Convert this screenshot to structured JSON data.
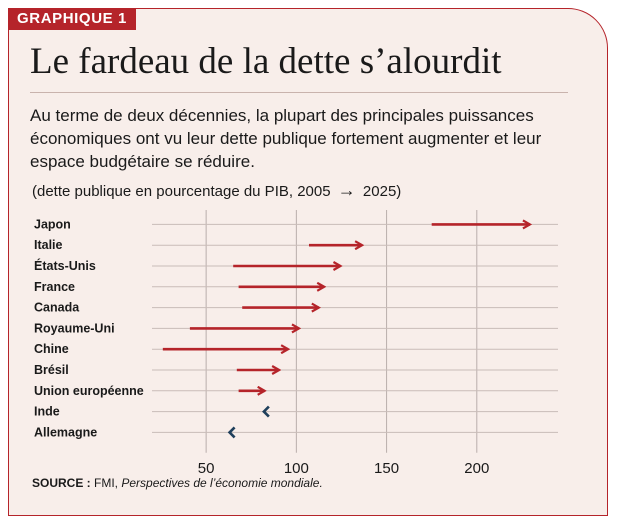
{
  "header": {
    "tag": "GRAPHIQUE 1",
    "title": "Le fardeau de la dette s’alourdit",
    "subtitle": "Au terme de deux décennies, la plupart des principales puissances économiques ont vu leur dette publique fortement augmenter et leur espace budgétaire se réduire.",
    "note_prefix": "(dette publique en pourcentage du PIB, 2005",
    "note_suffix": "2025)"
  },
  "source": {
    "label": "SOURCE :",
    "org": " FMI, ",
    "publication": "Perspectives de l’économie mondiale."
  },
  "colors": {
    "increase": "#b5242a",
    "decrease": "#1f3f5b",
    "accent": "#b5242a",
    "background": "#f8eeea"
  },
  "chart_data": {
    "type": "arrow",
    "title": "",
    "xlabel": "",
    "ylabel": "",
    "xlim": [
      20,
      245
    ],
    "xticks": [
      50,
      100,
      150,
      200
    ],
    "grid": true,
    "categories": [
      "Japon",
      "Italie",
      "États-Unis",
      "France",
      "Canada",
      "Royaume-Uni",
      "Chine",
      "Brésil",
      "Union européenne",
      "Inde",
      "Allemagne"
    ],
    "series": [
      {
        "values_2005": [
          175,
          107,
          65,
          68,
          70,
          41,
          26,
          67,
          68,
          86,
          69
        ]
      },
      {
        "values_2025": [
          230,
          137,
          125,
          116,
          113,
          102,
          96,
          91,
          83,
          82,
          63
        ]
      }
    ]
  }
}
